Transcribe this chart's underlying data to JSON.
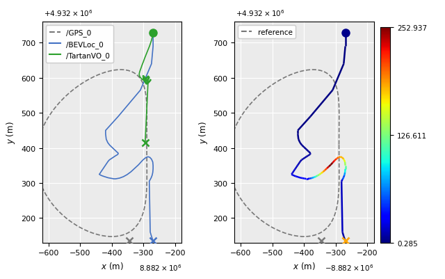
{
  "colorbar_min": 0.285,
  "colorbar_max": 252.937,
  "colorbar_mid": 126.611,
  "gps_color": "#777777",
  "bevloc_color": "#4472c4",
  "tartanvo_color": "#2ca02c",
  "background_color": "#ebebeb",
  "grid_color": "white",
  "xlim": [
    -620,
    -180
  ],
  "ylim": [
    130,
    760
  ],
  "xlabel": "x (m)",
  "ylabel": "y (m)",
  "ylabel2": "y (m)",
  "top_offset_left": "+4.932 x 10^6",
  "top_offset_right": "+4.932 x 10^6",
  "bottom_offset_left": "8.882 x 10^6",
  "bottom_offset_right": "-8.882 x 10^6",
  "legend1_labels": [
    "/GPS_0",
    "/BEVLoc_0",
    "/TartanVO_0"
  ],
  "legend2_labels": [
    "reference"
  ],
  "start_dot_color": "#2ca02c",
  "start_dot_color2": "#00008b"
}
